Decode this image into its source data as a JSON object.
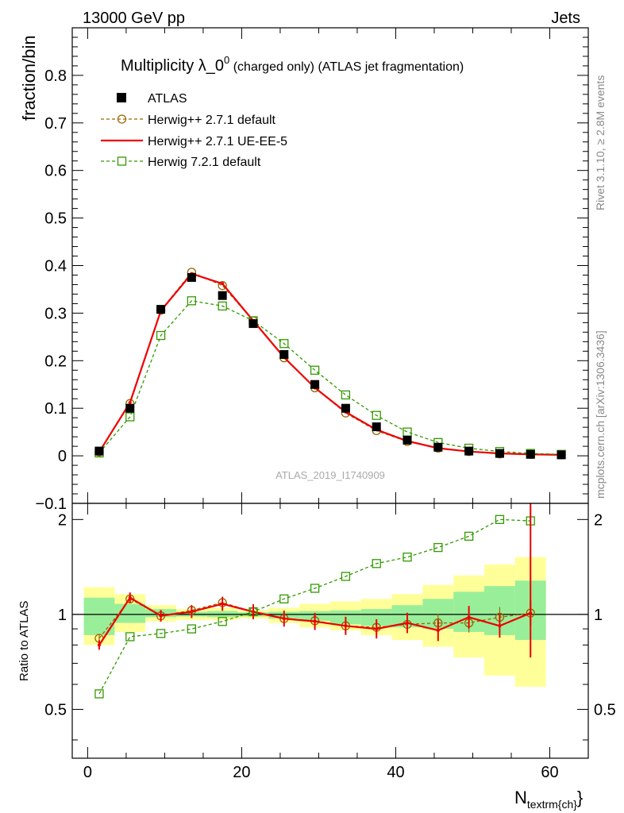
{
  "header": {
    "left": "13000 GeV pp",
    "right": "Jets"
  },
  "side_labels": {
    "rivet": "Rivet 3.1.10, ≥ 2.8M events",
    "mcplots": "mcplots.cern.ch [arXiv:1306.3436]"
  },
  "chart_data": {
    "type": "line",
    "title": "Multiplicity λ_0⁰ (charged only) (ATLAS jet fragmentation)",
    "title_main": "Multiplicity λ_0",
    "title_sup": "0",
    "title_rest": " (charged only) (ATLAS jet fragmentation)",
    "analysis_label": "ATLAS_2019_I1740909",
    "xlabel": "N",
    "xlabel_sub": "textrm{ch}",
    "xlabel_tail": "}",
    "ylabel": "fraction/bin",
    "ratio_ylabel": "Ratio to ATLAS",
    "xlim": [
      -2,
      65
    ],
    "ylim": [
      -0.1,
      0.9
    ],
    "ratio_ylim": [
      0.35,
      2.25
    ],
    "x_ticks": [
      "0",
      "20",
      "40",
      "60"
    ],
    "y_ticks": [
      "−0.1",
      "0",
      "0.1",
      "0.2",
      "0.3",
      "0.4",
      "0.5",
      "0.6",
      "0.7",
      "0.8"
    ],
    "ratio_ticks": [
      "0.5",
      "1",
      "2"
    ],
    "x": [
      1.5,
      5.5,
      9.5,
      13.5,
      17.5,
      21.5,
      25.5,
      29.5,
      33.5,
      37.5,
      41.5,
      45.5,
      49.5,
      53.5,
      57.5,
      61.5
    ],
    "series": [
      {
        "name": "ATLAS",
        "style": "marker",
        "color": "#000000",
        "values": [
          0.01,
          0.1,
          0.308,
          0.375,
          0.337,
          0.278,
          0.213,
          0.15,
          0.1,
          0.061,
          0.033,
          0.018,
          0.01,
          0.005,
          0.003,
          0.002
        ]
      },
      {
        "name": "Herwig++ 2.7.1 default",
        "style": "dashed-circle",
        "color": "#996600",
        "values": [
          0.008,
          0.11,
          0.306,
          0.386,
          0.358,
          0.284,
          0.206,
          0.143,
          0.09,
          0.053,
          0.03,
          0.016,
          0.009,
          0.004,
          0.003,
          0.002
        ],
        "ratio": [
          0.84,
          1.12,
          0.99,
          1.03,
          1.09,
          1.02,
          0.97,
          0.955,
          0.92,
          0.91,
          0.93,
          0.94,
          0.94,
          0.98,
          1.01,
          null
        ]
      },
      {
        "name": "Herwig++ 2.7.1 UE-EE-5",
        "style": "solid",
        "color": "#ee0000",
        "values": [
          0.008,
          0.112,
          0.305,
          0.383,
          0.362,
          0.284,
          0.207,
          0.143,
          0.092,
          0.055,
          0.031,
          0.016,
          0.009,
          0.005,
          0.003,
          0.002
        ],
        "ratio": [
          0.8,
          1.13,
          0.99,
          1.02,
          1.08,
          1.02,
          0.97,
          0.95,
          0.92,
          0.9,
          0.94,
          0.89,
          0.98,
          0.92,
          1.01,
          null
        ]
      },
      {
        "name": "Herwig 7.2.1 default",
        "style": "dashed-square",
        "color": "#339900",
        "values": [
          0.006,
          0.082,
          0.253,
          0.326,
          0.315,
          0.284,
          0.236,
          0.18,
          0.128,
          0.085,
          0.05,
          0.028,
          0.016,
          0.009,
          0.005,
          0.003
        ],
        "ratio": [
          0.56,
          0.85,
          0.87,
          0.9,
          0.95,
          1.02,
          1.12,
          1.21,
          1.32,
          1.45,
          1.52,
          1.63,
          1.77,
          2.0,
          1.98,
          null
        ]
      }
    ],
    "ratio_band_1sigma": [
      [
        0.86,
        1.13
      ],
      [
        0.94,
        1.08
      ],
      [
        0.98,
        1.04
      ],
      [
        0.985,
        1.02
      ],
      [
        0.98,
        1.025
      ],
      [
        0.985,
        1.015
      ],
      [
        0.97,
        1.02
      ],
      [
        0.955,
        1.025
      ],
      [
        0.93,
        1.03
      ],
      [
        0.92,
        1.04
      ],
      [
        0.91,
        1.07
      ],
      [
        0.9,
        1.12
      ],
      [
        0.88,
        1.18
      ],
      [
        0.86,
        1.23
      ],
      [
        0.83,
        1.28
      ]
    ],
    "ratio_band_2sigma": [
      [
        0.8,
        1.22
      ],
      [
        0.88,
        1.16
      ],
      [
        0.95,
        1.07
      ],
      [
        0.96,
        1.04
      ],
      [
        0.96,
        1.05
      ],
      [
        0.97,
        1.03
      ],
      [
        0.94,
        1.05
      ],
      [
        0.91,
        1.08
      ],
      [
        0.89,
        1.1
      ],
      [
        0.86,
        1.12
      ],
      [
        0.83,
        1.16
      ],
      [
        0.79,
        1.24
      ],
      [
        0.73,
        1.33
      ],
      [
        0.64,
        1.44
      ],
      [
        0.59,
        1.52
      ]
    ],
    "legend_position": "top-left",
    "grid": false
  }
}
